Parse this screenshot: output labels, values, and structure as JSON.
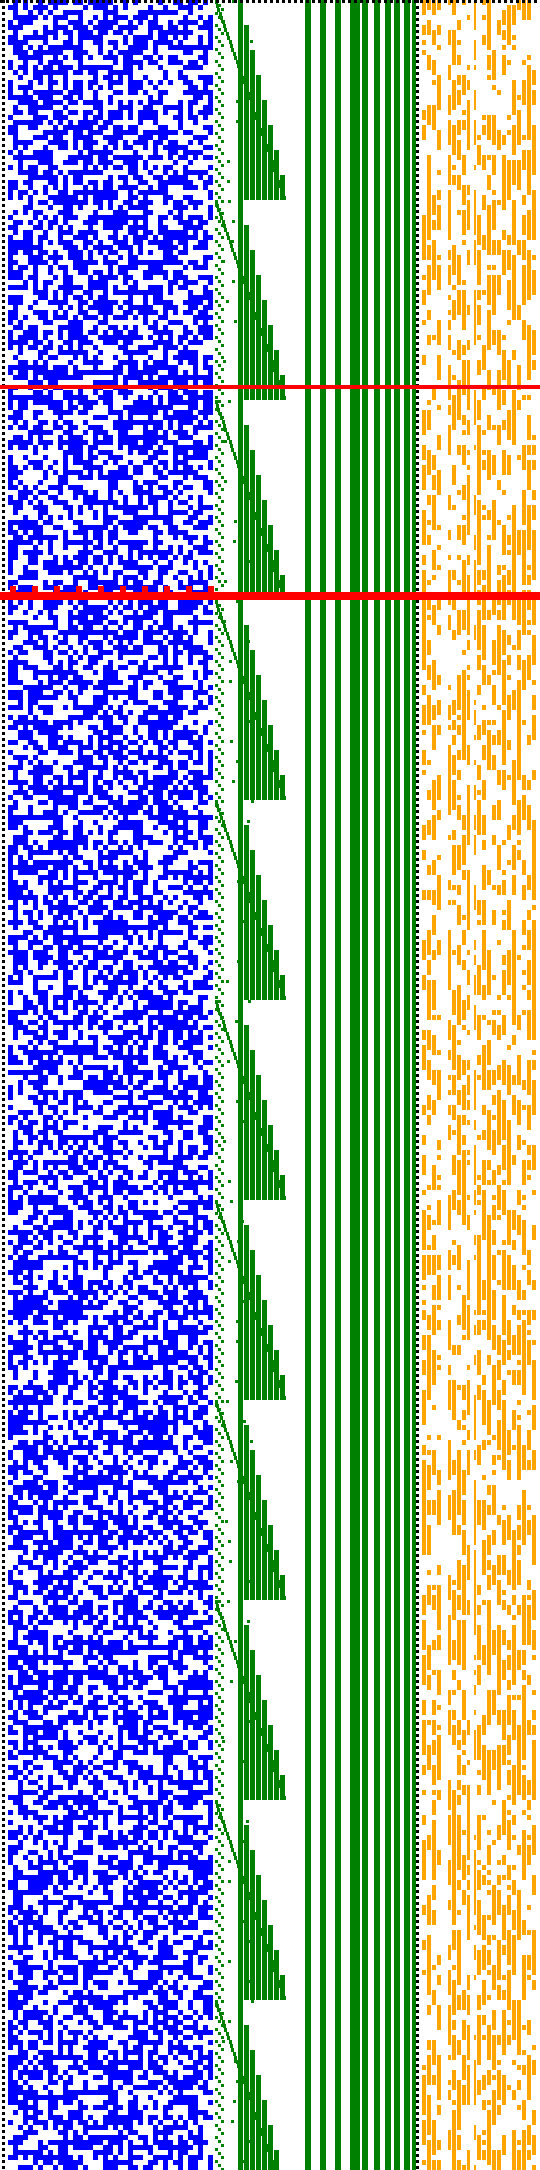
{
  "colors": {
    "background": "#ffffff",
    "blue_field": "#0000ff",
    "green_steps": "#008000",
    "green_bars": "#008000",
    "orange_field": "#ffa500",
    "red_marker": "#ff0000",
    "divider_dots": "#000000"
  },
  "panels": {
    "blue_field": {
      "name": "blue-bit-field",
      "density": 0.55
    },
    "green_steps": {
      "name": "green-staircase"
    },
    "green_bars": {
      "name": "green-vertical-bars",
      "count": 11
    },
    "orange_field": {
      "name": "orange-bit-field",
      "density": 0.5
    }
  },
  "markers": [
    {
      "name": "red-marker-upper"
    },
    {
      "name": "red-marker-lower"
    }
  ],
  "dividers": [
    {
      "name": "dotted-divider-left"
    },
    {
      "name": "dotted-divider-top"
    },
    {
      "name": "dotted-divider-middle"
    }
  ]
}
